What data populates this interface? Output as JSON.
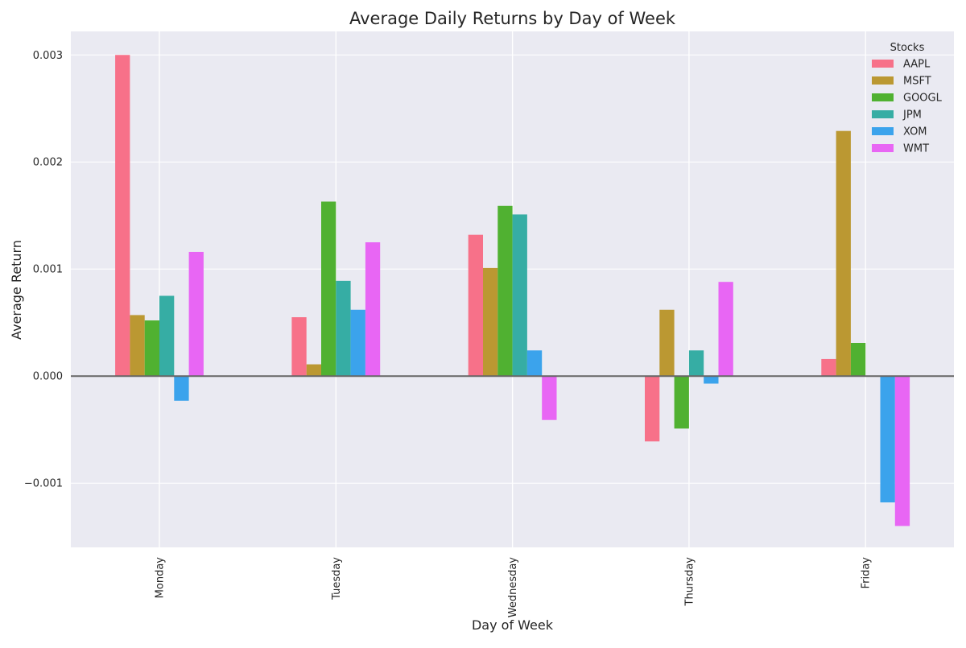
{
  "chart_data": {
    "type": "bar",
    "title": "Average Daily Returns by Day of Week",
    "xlabel": "Day of Week",
    "ylabel": "Average Return",
    "categories": [
      "Monday",
      "Tuesday",
      "Wednesday",
      "Thursday",
      "Friday"
    ],
    "ylim": [
      -0.0016,
      0.00322
    ],
    "yticks": [
      -0.001,
      0.0,
      0.001,
      0.002,
      0.003
    ],
    "ytick_labels": [
      "−0.001",
      "0.000",
      "0.001",
      "0.002",
      "0.003"
    ],
    "grid": true,
    "zero_line": true,
    "legend": {
      "title": "Stocks",
      "placement": "top-right"
    },
    "series": [
      {
        "name": "AAPL",
        "color": "#f77189",
        "values": [
          0.003,
          0.00055,
          0.00132,
          -0.00061,
          0.00016
        ]
      },
      {
        "name": "MSFT",
        "color": "#bb9832",
        "values": [
          0.00057,
          0.00011,
          0.00101,
          0.00062,
          0.00229
        ]
      },
      {
        "name": "GOOGL",
        "color": "#50b131",
        "values": [
          0.00052,
          0.00163,
          0.00159,
          -0.00049,
          0.00031
        ]
      },
      {
        "name": "JPM",
        "color": "#36ada4",
        "values": [
          0.00075,
          0.00089,
          0.00151,
          0.00024,
          0.0
        ]
      },
      {
        "name": "XOM",
        "color": "#3ba3ec",
        "values": [
          -0.00023,
          0.00062,
          0.00024,
          -7e-05,
          -0.00118
        ]
      },
      {
        "name": "WMT",
        "color": "#e866f4",
        "values": [
          0.00116,
          0.00125,
          -0.00041,
          0.00088,
          -0.0014
        ]
      }
    ]
  }
}
